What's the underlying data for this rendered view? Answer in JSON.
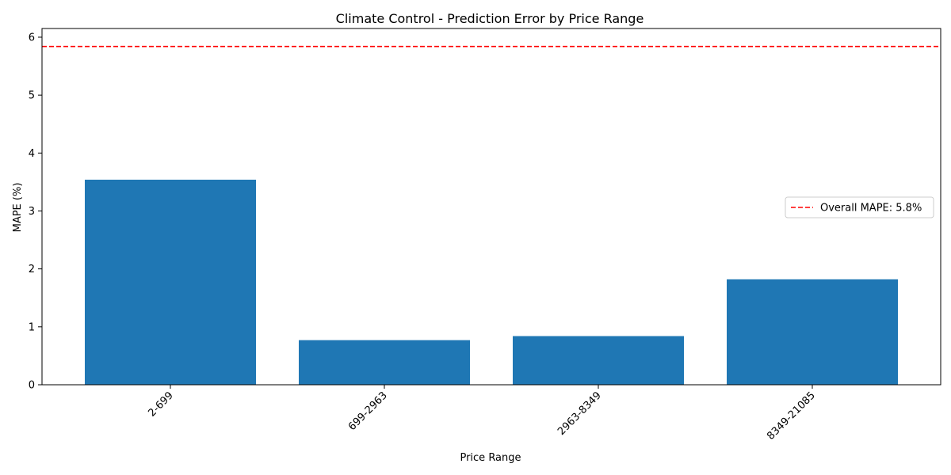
{
  "chart_data": {
    "type": "bar",
    "title": "Climate Control - Prediction Error by Price Range",
    "xlabel": "Price Range",
    "ylabel": "MAPE (%)",
    "categories": [
      "2-699",
      "699-2963",
      "2963-8349",
      "8349-21085"
    ],
    "values": [
      3.54,
      0.77,
      0.84,
      1.82
    ],
    "ylim": [
      0,
      6.15
    ],
    "yticks": [
      0,
      1,
      2,
      3,
      4,
      5,
      6
    ],
    "bar_color": "#1f77b4",
    "reference_line": {
      "value": 5.84,
      "label": "Overall MAPE: 5.8%",
      "color": "#ff0000",
      "style": "dashed"
    },
    "legend_position": "center-right",
    "grid": false
  }
}
